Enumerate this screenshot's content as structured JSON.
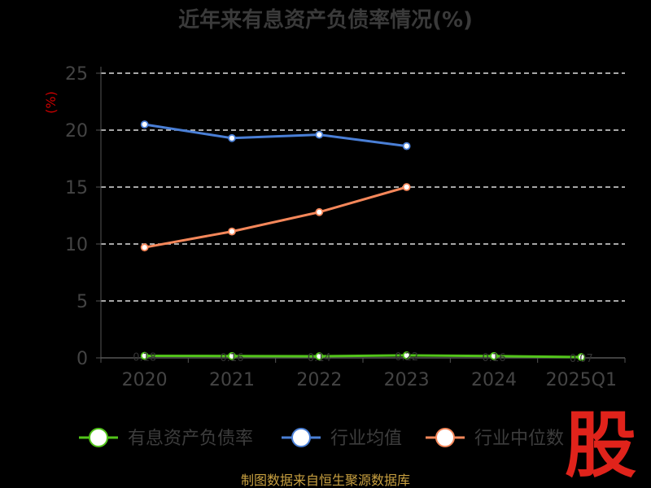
{
  "chart_data": {
    "type": "line",
    "title": "近年来有息资产负债率情况(%)",
    "ylabel": "(%)",
    "xlabel": "",
    "categories": [
      "2020",
      "2021",
      "2022",
      "2023",
      "2024",
      "2025Q1"
    ],
    "ylim": [
      0,
      25
    ],
    "yticks": [
      0,
      5,
      10,
      15,
      20,
      25
    ],
    "grid": true,
    "legend_position": "bottom",
    "series": [
      {
        "name": "有息资产负债率",
        "color": "#52c41a",
        "values": [
          0.18,
          0.16,
          0.14,
          0.22,
          0.16,
          0.07
        ],
        "data_labels": [
          "0.18",
          "0.16",
          "0.14",
          "0.22",
          "0.16",
          "0.07"
        ]
      },
      {
        "name": "行业均值",
        "color": "#4a7fd6",
        "values": [
          20.5,
          19.3,
          19.6,
          18.6,
          null,
          null
        ]
      },
      {
        "name": "行业中位数",
        "color": "#f5875a",
        "values": [
          9.7,
          11.1,
          12.8,
          15.0,
          null,
          null
        ]
      }
    ]
  },
  "footer": "制图数据来自恒生聚源数据库",
  "brand": "股"
}
